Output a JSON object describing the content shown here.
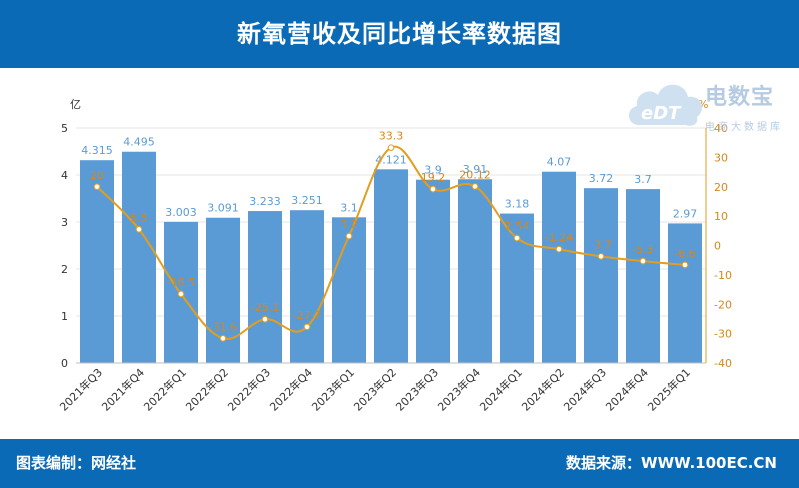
{
  "header": {
    "title": "新氧营收及同比增长率数据图"
  },
  "footer": {
    "editor": "图表编制：网经社",
    "source": "数据来源：WWW.100EC.CN"
  },
  "logo": {
    "main": "电数宝",
    "sub": "电商大数据库",
    "badge": "eDT"
  },
  "colors": {
    "bar": "#5b9bd5",
    "line": "#e39d1f",
    "header": "#0a6ab5",
    "bar_label": "#5b9bd5",
    "line_label": "#d4881a"
  },
  "chart_data": {
    "type": "bar",
    "categories": [
      "2021年Q3",
      "2021年Q4",
      "2022年Q1",
      "2022年Q2",
      "2022年Q3",
      "2022年Q4",
      "2023年Q1",
      "2023年Q2",
      "2023年Q3",
      "2023年Q4",
      "2024年Q1",
      "2024年Q2",
      "2024年Q3",
      "2024年Q4",
      "2025年Q1"
    ],
    "series": [
      {
        "type": "bar",
        "axis": "left",
        "values": [
          4.315,
          4.495,
          3.003,
          3.091,
          3.233,
          3.251,
          3.1,
          4.121,
          3.9,
          3.91,
          3.18,
          4.07,
          3.72,
          3.7,
          2.97
        ],
        "labels": [
          "4.315",
          "4.495",
          "3.003",
          "3.091",
          "3.233",
          "3.251",
          "3.1",
          "4.121",
          "3.9",
          "3.91",
          "3.18",
          "4.07",
          "3.72",
          "3.7",
          "2.97"
        ]
      },
      {
        "type": "line",
        "axis": "right",
        "values": [
          20,
          5.5,
          -16.5,
          -31.6,
          -25.1,
          -27.7,
          3.2,
          33.3,
          19.2,
          20.12,
          2.54,
          -1.24,
          -3.7,
          -5.3,
          -6.6
        ],
        "labels": [
          "20",
          "5.5",
          "-16.5",
          "-31.6",
          "-25.1",
          "-27.7",
          "3.2",
          "33.3",
          "19.2",
          "20.12",
          "2.54",
          "-1.24",
          "-3.7",
          "-5.3",
          "-6.6"
        ]
      }
    ],
    "left_axis": {
      "unit": "亿",
      "ylim": [
        0,
        5
      ],
      "ticks": [
        "0",
        "1",
        "2",
        "3",
        "4",
        "5"
      ]
    },
    "right_axis": {
      "unit": "%",
      "ylim": [
        -40,
        40
      ],
      "ticks": [
        "-40",
        "-30",
        "-20",
        "-10",
        "0",
        "10",
        "20",
        "30",
        "40"
      ]
    },
    "grid": true
  }
}
